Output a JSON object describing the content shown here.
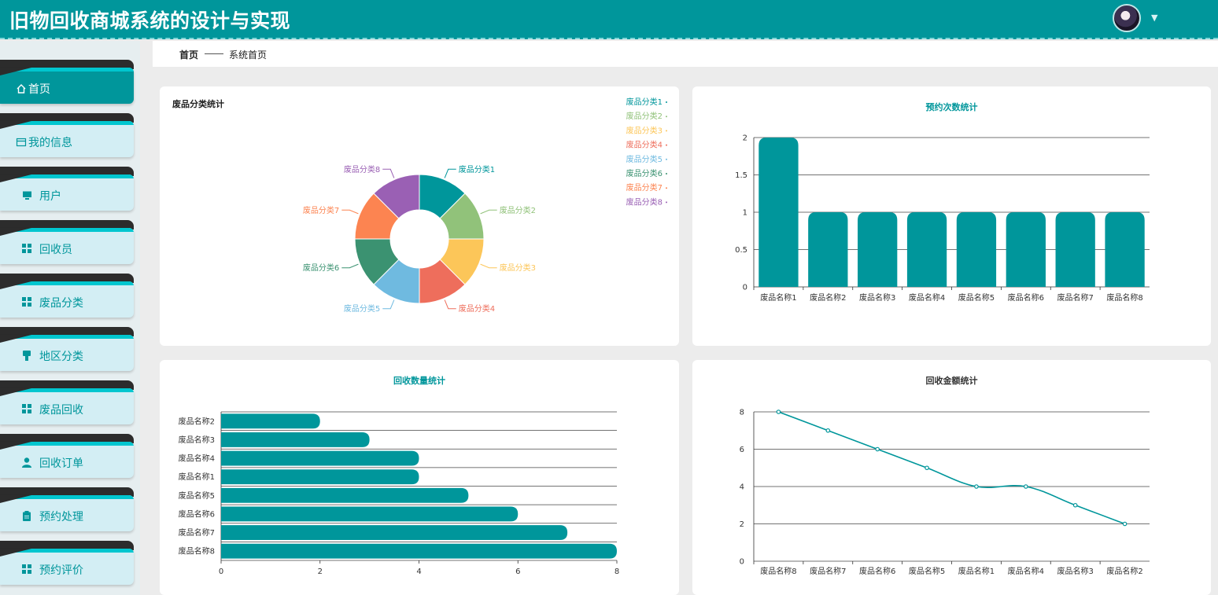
{
  "app": {
    "title": "旧物回收商城系统的设计与实现"
  },
  "header": {
    "avatar_icon": "user-avatar-icon",
    "dropdown_icon": "caret-down-icon"
  },
  "sidebar": {
    "items": [
      {
        "label": "首页",
        "icon": "home-icon",
        "active": true
      },
      {
        "label": "我的信息",
        "icon": "profile-card-icon"
      },
      {
        "label": "用户",
        "icon": "monitor-icon"
      },
      {
        "label": "回收员",
        "icon": "grid-icon"
      },
      {
        "label": "废品分类",
        "icon": "grid-icon"
      },
      {
        "label": "地区分类",
        "icon": "pin-icon"
      },
      {
        "label": "废品回收",
        "icon": "grid-icon"
      },
      {
        "label": "回收订单",
        "icon": "user-icon"
      },
      {
        "label": "预约处理",
        "icon": "clipboard-icon"
      },
      {
        "label": "预约评价",
        "icon": "grid-icon"
      }
    ]
  },
  "breadcrumb": {
    "home": "首页",
    "current": "系统首页"
  },
  "colors": {
    "primary": "#00969b",
    "header_bg": "#00969b",
    "sidebar_item_bg": "#d3eef4"
  },
  "chart_data": [
    {
      "type": "pie",
      "title": "废品分类统计",
      "donut": true,
      "legend": "top-right",
      "slices": [
        {
          "label": "废品分类1",
          "value": 1,
          "color": "#00969b"
        },
        {
          "label": "废品分类2",
          "value": 1,
          "color": "#91c27a"
        },
        {
          "label": "废品分类3",
          "value": 1,
          "color": "#fcc659"
        },
        {
          "label": "废品分类4",
          "value": 1,
          "color": "#ee6e5c"
        },
        {
          "label": "废品分类5",
          "value": 1,
          "color": "#6fbae0"
        },
        {
          "label": "废品分类6",
          "value": 1,
          "color": "#3b9271"
        },
        {
          "label": "废品分类7",
          "value": 1,
          "color": "#fc8451"
        },
        {
          "label": "废品分类8",
          "value": 1,
          "color": "#9a60b4"
        }
      ]
    },
    {
      "type": "bar",
      "title": "预约次数统计",
      "categories": [
        "废品名称1",
        "废品名称2",
        "废品名称3",
        "废品名称4",
        "废品名称5",
        "废品名称6",
        "废品名称7",
        "废品名称8"
      ],
      "values": [
        2,
        1,
        1,
        1,
        1,
        1,
        1,
        1
      ],
      "ylim": [
        0,
        2
      ],
      "yticks": [
        "0",
        "0.5",
        "1",
        "1.5",
        "2"
      ],
      "grid": true,
      "color": "#00969b"
    },
    {
      "type": "bar",
      "orientation": "horizontal",
      "title": "回收数量统计",
      "categories": [
        "废品名称2",
        "废品名称3",
        "废品名称4",
        "废品名称1",
        "废品名称5",
        "废品名称6",
        "废品名称7",
        "废品名称8"
      ],
      "values": [
        2,
        3,
        4,
        4,
        5,
        6,
        7,
        8
      ],
      "xlim": [
        0,
        8
      ],
      "xticks": [
        "0",
        "2",
        "4",
        "6",
        "8"
      ],
      "grid": true,
      "color": "#00969b"
    },
    {
      "type": "line",
      "title": "回收金额统计",
      "categories": [
        "废品名称8",
        "废品名称7",
        "废品名称6",
        "废品名称5",
        "废品名称1",
        "废品名称4",
        "废品名称3",
        "废品名称2"
      ],
      "values": [
        8,
        7,
        6,
        5,
        4,
        4,
        3,
        2
      ],
      "ylim": [
        0,
        8
      ],
      "yticks": [
        "0",
        "2",
        "4",
        "6",
        "8"
      ],
      "grid": true,
      "smooth": true,
      "color": "#00969b"
    }
  ]
}
